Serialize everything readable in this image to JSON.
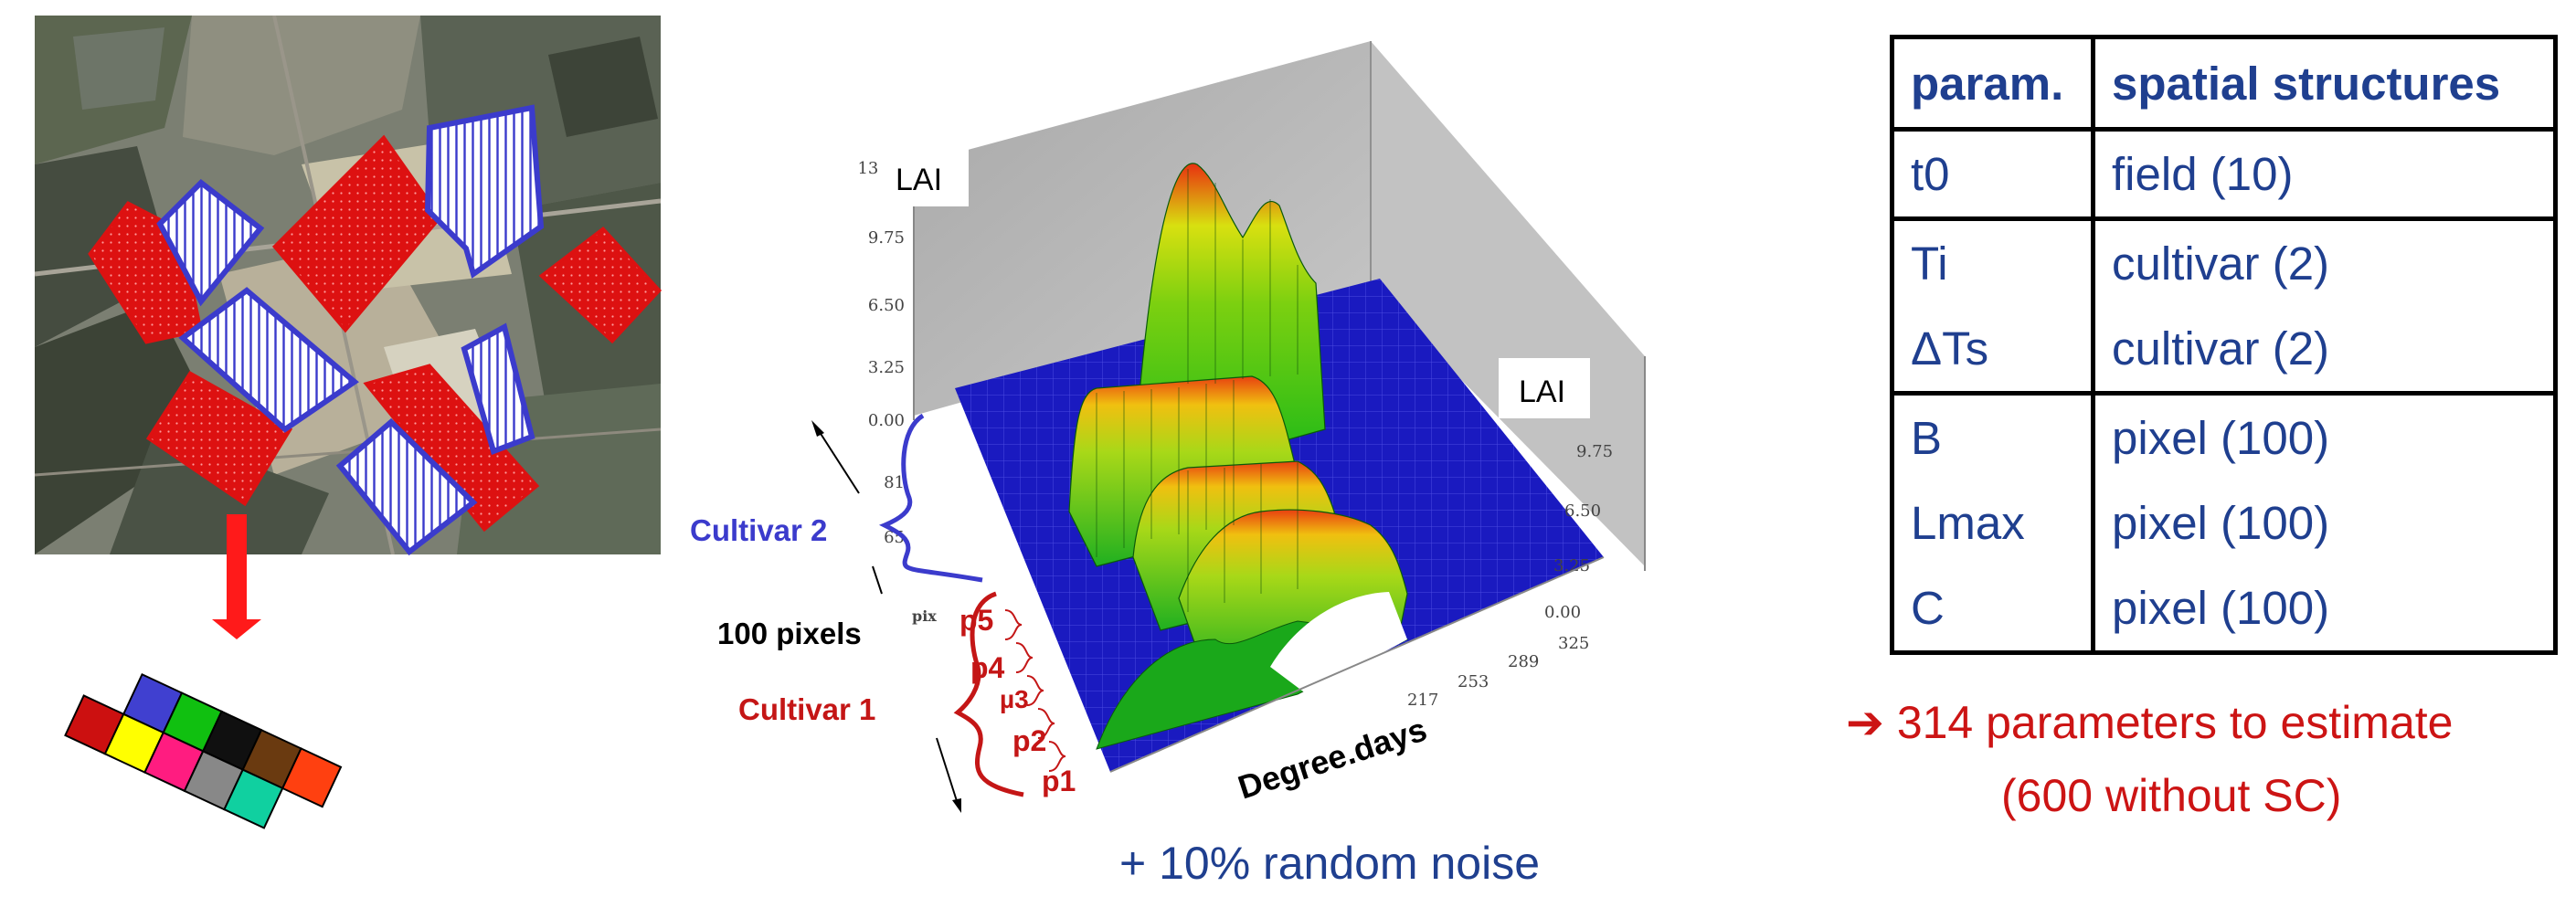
{
  "map_panel": {
    "colors": {
      "cultivar1_fill": "#dd1111",
      "cultivar2_hatch": "#3b3bcc",
      "arrow": "#ff1a1a"
    }
  },
  "pixel_grid": {
    "colors": [
      "#4040d0",
      "#cc1010",
      "#10c010",
      "#101010",
      "#ffff00",
      "#ff1c80",
      "#6a3a10",
      "#888888",
      "#ff4010",
      "#10d0a0"
    ]
  },
  "surface_plot": {
    "z_axis_left": {
      "label": "LAI",
      "ticks": [
        "13.00",
        "9.75",
        "6.50",
        "3.25",
        "0.00"
      ]
    },
    "z_axis_right": {
      "label": "LAI",
      "ticks": [
        "9.75",
        "6.50",
        "3.25",
        "0.00"
      ]
    },
    "pixel_axis_ticks": [
      "81",
      "65"
    ],
    "pixel_axis_stub": "pix",
    "x_axis": {
      "label": "Degree.days",
      "ticks": [
        "325",
        "289",
        "253",
        "217"
      ]
    },
    "colors": {
      "floor": "#1a1ac0",
      "wall": "#b8b8b8",
      "low": "#18b818",
      "mid": "#d8e010",
      "high": "#e83010"
    }
  },
  "annotations": {
    "cultivar2_label": "Cultivar 2",
    "pixels_label": "100 pixels",
    "cultivar1_label": "Cultivar 1",
    "pixel_marks": [
      "p5",
      "p4",
      "µ3",
      "p2",
      "p1"
    ],
    "cultivar1_color": "#c41616",
    "cultivar2_color": "#3b3bcc"
  },
  "noise_caption": "+ 10% random noise",
  "param_table": {
    "headers": [
      "param.",
      "spatial structures"
    ],
    "rows": [
      [
        "t0",
        "field (10)"
      ],
      [
        "Ti",
        "cultivar (2)"
      ],
      [
        "ΔTs",
        "cultivar (2)"
      ],
      [
        "B",
        "pixel  (100)"
      ],
      [
        "Lmax",
        "pixel  (100)"
      ],
      [
        "C",
        "pixel  (100)"
      ]
    ]
  },
  "result": {
    "arrow": "➔",
    "line1": "314 parameters to estimate",
    "line2": "(600 without SC)"
  }
}
